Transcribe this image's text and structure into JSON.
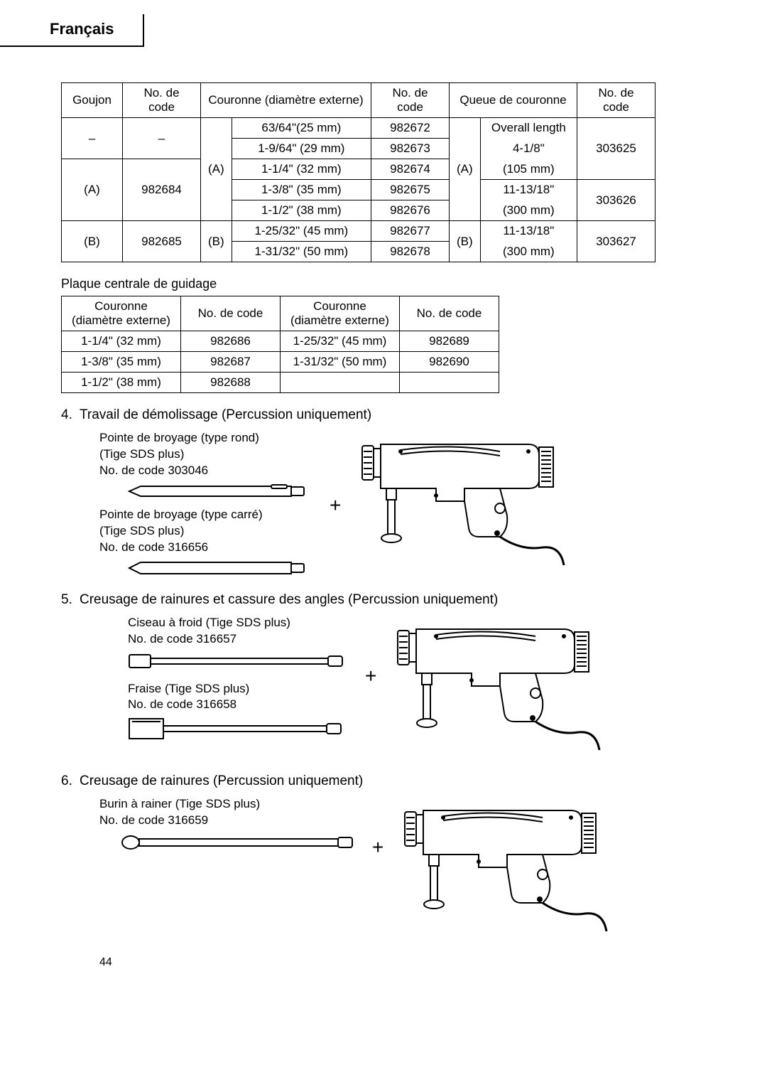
{
  "lang_label": "Français",
  "table1": {
    "headers": [
      "Goujon",
      "No. de code",
      "Couronne (diamètre externe)",
      "No. de code",
      "Queue de couronne",
      "No. de code"
    ],
    "col_goujon": [
      "–",
      "(A)",
      "(B)"
    ],
    "col_goujon_code": [
      "–",
      "982684",
      "982685"
    ],
    "col_cour_group": [
      "(A)",
      "(B)"
    ],
    "col_cour_vals": [
      "63/64\"(25 mm)",
      "1-9/64\" (29 mm)",
      "1-1/4\" (32 mm)",
      "1-3/8\" (35 mm)",
      "1-1/2\" (38 mm)",
      "1-25/32\" (45 mm)",
      "1-31/32\" (50 mm)"
    ],
    "col_cour_codes": [
      "982672",
      "982673",
      "982674",
      "982675",
      "982676",
      "982677",
      "982678"
    ],
    "col_queue_group": [
      "(A)",
      "(B)"
    ],
    "col_queue_vals_row1": [
      "Overall length",
      "4-1/8\"",
      "(105 mm)"
    ],
    "col_queue_vals_row2": [
      "11-13/18\"",
      "(300 mm)"
    ],
    "col_queue_vals_row3": [
      "11-13/18\"",
      "(300 mm)"
    ],
    "col_queue_codes": [
      "303625",
      "303626",
      "303627"
    ]
  },
  "table2_title": "Plaque centrale de guidage",
  "table2": {
    "headers": [
      "Couronne\n(diamètre externe)",
      "No. de code",
      "Couronne\n(diamètre externe)",
      "No. de code"
    ],
    "rows": [
      [
        "1-1/4\" (32 mm)",
        "982686",
        "1-25/32\" (45 mm)",
        "982689"
      ],
      [
        "1-3/8\" (35 mm)",
        "982687",
        "1-31/32\" (50 mm)",
        "982690"
      ],
      [
        "1-1/2\" (38 mm)",
        "982688",
        "",
        ""
      ]
    ]
  },
  "sec4": {
    "num": "4.",
    "title": "Travail de démolissage (Percussion uniquement)",
    "item1_l1": "Pointe de broyage (type rond)",
    "item1_l2": "(Tige SDS plus)",
    "item1_l3": "No. de code 303046",
    "item2_l1": "Pointe de broyage (type carré)",
    "item2_l2": "(Tige SDS plus)",
    "item2_l3": "No. de code 316656"
  },
  "sec5": {
    "num": "5.",
    "title": "Creusage de rainures et cassure des angles (Percussion uniquement)",
    "item1_l1": "Ciseau à froid (Tige SDS plus)",
    "item1_l2": "No. de code 316657",
    "item2_l1": "Fraise (Tige SDS plus)",
    "item2_l2": "No. de code 316658"
  },
  "sec6": {
    "num": "6.",
    "title": "Creusage de rainures (Percussion uniquement)",
    "item1_l1": "Burin à rainer (Tige SDS plus)",
    "item1_l2": "No. de code 316659"
  },
  "plus": "+",
  "pagenum": "44",
  "style": {
    "stroke": "#000000",
    "fill_white": "#ffffff",
    "fill_grey": "#e8e8e8",
    "stroke_width": 2
  }
}
